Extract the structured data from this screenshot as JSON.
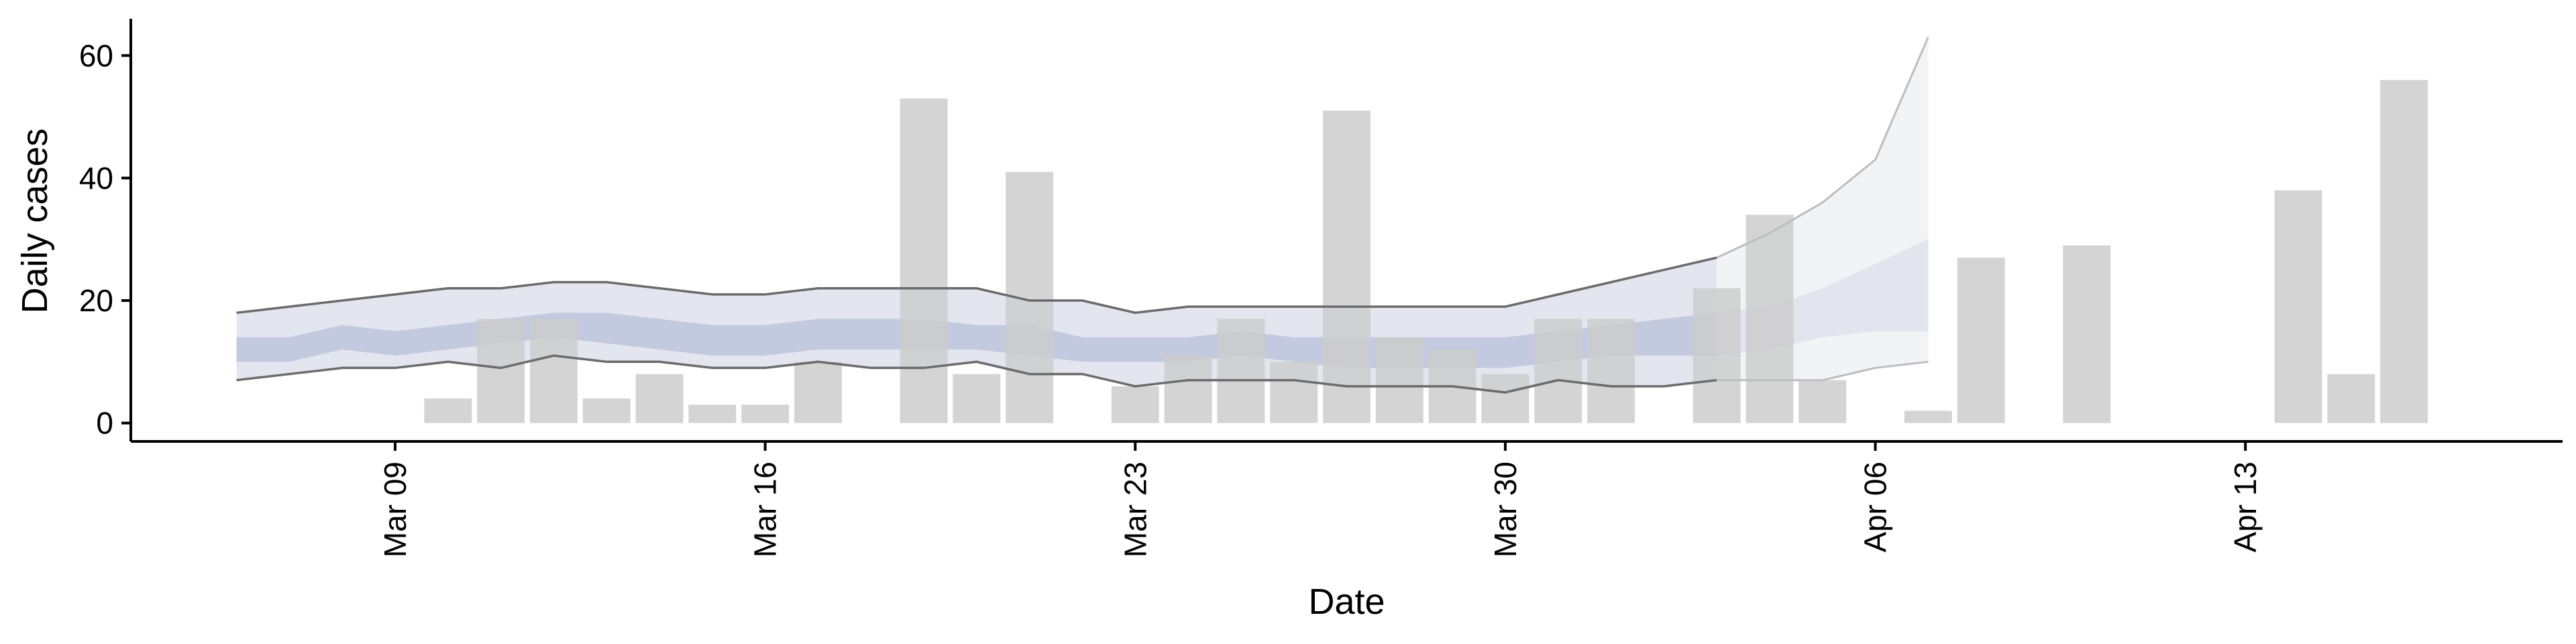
{
  "chart_data": {
    "type": "bar",
    "xlabel": "Date",
    "ylabel": "Daily cases",
    "x_type": "date",
    "x_tick_labels": [
      "Mar 09",
      "Mar 16",
      "Mar 23",
      "Mar 30",
      "Apr 06",
      "Apr 13"
    ],
    "x_tick_dates": [
      "2020-03-09",
      "2020-03-16",
      "2020-03-23",
      "2020-03-30",
      "2020-04-06",
      "2020-04-13"
    ],
    "xlim": [
      "2020-03-04",
      "2020-04-19"
    ],
    "ylim": [
      -3,
      66
    ],
    "y_ticks": [
      0,
      20,
      40,
      60
    ],
    "grid": false,
    "legend": "none",
    "colors": {
      "bars": "#cccccc",
      "band_outer": "#e3e6ef",
      "band_inner": "#c3cadf",
      "band_lines": "#6b6b6b",
      "forecast_outer": "#f2f3f6",
      "forecast_inner": "#e2e5ed",
      "forecast_lines": "#bdbdbd"
    },
    "bars": [
      {
        "date": "2020-03-10",
        "value": 4
      },
      {
        "date": "2020-03-11",
        "value": 17
      },
      {
        "date": "2020-03-12",
        "value": 17
      },
      {
        "date": "2020-03-13",
        "value": 4
      },
      {
        "date": "2020-03-14",
        "value": 8
      },
      {
        "date": "2020-03-15",
        "value": 3
      },
      {
        "date": "2020-03-16",
        "value": 3
      },
      {
        "date": "2020-03-17",
        "value": 10
      },
      {
        "date": "2020-03-19",
        "value": 53
      },
      {
        "date": "2020-03-20",
        "value": 8
      },
      {
        "date": "2020-03-21",
        "value": 41
      },
      {
        "date": "2020-03-23",
        "value": 6
      },
      {
        "date": "2020-03-24",
        "value": 11
      },
      {
        "date": "2020-03-25",
        "value": 17
      },
      {
        "date": "2020-03-26",
        "value": 10
      },
      {
        "date": "2020-03-27",
        "value": 51
      },
      {
        "date": "2020-03-28",
        "value": 14
      },
      {
        "date": "2020-03-29",
        "value": 12
      },
      {
        "date": "2020-03-30",
        "value": 8
      },
      {
        "date": "2020-03-31",
        "value": 17
      },
      {
        "date": "2020-04-01",
        "value": 17
      },
      {
        "date": "2020-04-03",
        "value": 22
      },
      {
        "date": "2020-04-04",
        "value": 34
      },
      {
        "date": "2020-04-05",
        "value": 7
      },
      {
        "date": "2020-04-07",
        "value": 2
      },
      {
        "date": "2020-04-08",
        "value": 27
      },
      {
        "date": "2020-04-10",
        "value": 29
      },
      {
        "date": "2020-04-14",
        "value": 38
      },
      {
        "date": "2020-04-15",
        "value": 8
      },
      {
        "date": "2020-04-16",
        "value": 56
      }
    ],
    "fitted": [
      {
        "date": "2020-03-06",
        "outer_low": 7,
        "inner_low": 10,
        "inner_high": 14,
        "outer_high": 18
      },
      {
        "date": "2020-03-07",
        "outer_low": 8,
        "inner_low": 10,
        "inner_high": 14,
        "outer_high": 19
      },
      {
        "date": "2020-03-08",
        "outer_low": 9,
        "inner_low": 12,
        "inner_high": 16,
        "outer_high": 20
      },
      {
        "date": "2020-03-09",
        "outer_low": 9,
        "inner_low": 11,
        "inner_high": 15,
        "outer_high": 21
      },
      {
        "date": "2020-03-10",
        "outer_low": 10,
        "inner_low": 12,
        "inner_high": 16,
        "outer_high": 22
      },
      {
        "date": "2020-03-11",
        "outer_low": 9,
        "inner_low": 13,
        "inner_high": 17,
        "outer_high": 22
      },
      {
        "date": "2020-03-12",
        "outer_low": 11,
        "inner_low": 14,
        "inner_high": 18,
        "outer_high": 23
      },
      {
        "date": "2020-03-13",
        "outer_low": 10,
        "inner_low": 13,
        "inner_high": 18,
        "outer_high": 23
      },
      {
        "date": "2020-03-14",
        "outer_low": 10,
        "inner_low": 12,
        "inner_high": 17,
        "outer_high": 22
      },
      {
        "date": "2020-03-15",
        "outer_low": 9,
        "inner_low": 11,
        "inner_high": 16,
        "outer_high": 21
      },
      {
        "date": "2020-03-16",
        "outer_low": 9,
        "inner_low": 11,
        "inner_high": 16,
        "outer_high": 21
      },
      {
        "date": "2020-03-17",
        "outer_low": 10,
        "inner_low": 12,
        "inner_high": 17,
        "outer_high": 22
      },
      {
        "date": "2020-03-18",
        "outer_low": 9,
        "inner_low": 12,
        "inner_high": 17,
        "outer_high": 22
      },
      {
        "date": "2020-03-19",
        "outer_low": 9,
        "inner_low": 12,
        "inner_high": 17,
        "outer_high": 22
      },
      {
        "date": "2020-03-20",
        "outer_low": 10,
        "inner_low": 12,
        "inner_high": 16,
        "outer_high": 22
      },
      {
        "date": "2020-03-21",
        "outer_low": 8,
        "inner_low": 11,
        "inner_high": 16,
        "outer_high": 20
      },
      {
        "date": "2020-03-22",
        "outer_low": 8,
        "inner_low": 10,
        "inner_high": 14,
        "outer_high": 20
      },
      {
        "date": "2020-03-23",
        "outer_low": 6,
        "inner_low": 10,
        "inner_high": 14,
        "outer_high": 18
      },
      {
        "date": "2020-03-24",
        "outer_low": 7,
        "inner_low": 10,
        "inner_high": 14,
        "outer_high": 19
      },
      {
        "date": "2020-03-25",
        "outer_low": 7,
        "inner_low": 11,
        "inner_high": 15,
        "outer_high": 19
      },
      {
        "date": "2020-03-26",
        "outer_low": 7,
        "inner_low": 10,
        "inner_high": 14,
        "outer_high": 19
      },
      {
        "date": "2020-03-27",
        "outer_low": 6,
        "inner_low": 9,
        "inner_high": 14,
        "outer_high": 19
      },
      {
        "date": "2020-03-28",
        "outer_low": 6,
        "inner_low": 9,
        "inner_high": 14,
        "outer_high": 19
      },
      {
        "date": "2020-03-29",
        "outer_low": 6,
        "inner_low": 9,
        "inner_high": 14,
        "outer_high": 19
      },
      {
        "date": "2020-03-30",
        "outer_low": 5,
        "inner_low": 9,
        "inner_high": 14,
        "outer_high": 19
      },
      {
        "date": "2020-03-31",
        "outer_low": 7,
        "inner_low": 10,
        "inner_high": 15,
        "outer_high": 21
      },
      {
        "date": "2020-04-01",
        "outer_low": 6,
        "inner_low": 11,
        "inner_high": 16,
        "outer_high": 23
      },
      {
        "date": "2020-04-02",
        "outer_low": 6,
        "inner_low": 11,
        "inner_high": 17,
        "outer_high": 25
      },
      {
        "date": "2020-04-03",
        "outer_low": 7,
        "inner_low": 11,
        "inner_high": 18,
        "outer_high": 27
      }
    ],
    "forecast": [
      {
        "date": "2020-04-03",
        "outer_low": 7,
        "inner_low": 11,
        "inner_high": 18,
        "outer_high": 27
      },
      {
        "date": "2020-04-04",
        "outer_low": 7,
        "inner_low": 12,
        "inner_high": 19,
        "outer_high": 31
      },
      {
        "date": "2020-04-05",
        "outer_low": 7,
        "inner_low": 14,
        "inner_high": 22,
        "outer_high": 36
      },
      {
        "date": "2020-04-06",
        "outer_low": 9,
        "inner_low": 15,
        "inner_high": 26,
        "outer_high": 43
      },
      {
        "date": "2020-04-07",
        "outer_low": 10,
        "inner_low": 15,
        "inner_high": 30,
        "outer_high": 63
      }
    ]
  }
}
